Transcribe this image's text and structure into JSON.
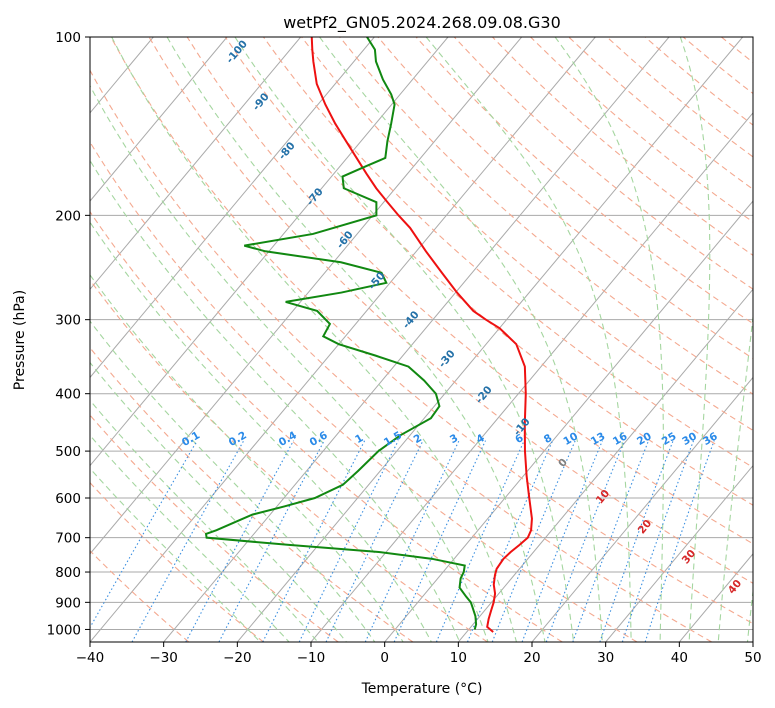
{
  "chart_data": {
    "type": "line",
    "chart_kind": "skew-T log-P diagram",
    "title": "wetPf2_GN05.2024.268.09.08.G30",
    "xlabel": "Temperature (°C)",
    "ylabel": "Pressure (hPa)",
    "xlim": [
      -40,
      50
    ],
    "ylim": [
      1050,
      100
    ],
    "y_scale": "log",
    "x_ticks": [
      -40,
      -30,
      -20,
      -10,
      0,
      10,
      20,
      30,
      40,
      50
    ],
    "y_ticks": [
      100,
      200,
      300,
      400,
      500,
      600,
      700,
      800,
      900,
      1000
    ],
    "grid": true,
    "legend": "none",
    "series": [
      {
        "role": "temperature",
        "color": "#ee1111",
        "points": [
          [
            1010,
            13.6
          ],
          [
            990,
            12.2
          ],
          [
            960,
            11.5
          ],
          [
            930,
            10.9
          ],
          [
            900,
            10.3
          ],
          [
            870,
            9.5
          ],
          [
            840,
            8.3
          ],
          [
            810,
            7.4
          ],
          [
            790,
            6.9
          ],
          [
            760,
            6.7
          ],
          [
            740,
            6.9
          ],
          [
            720,
            7.3
          ],
          [
            700,
            7.6
          ],
          [
            680,
            7.2
          ],
          [
            650,
            6.0
          ],
          [
            600,
            3.3
          ],
          [
            550,
            0.4
          ],
          [
            500,
            -2.6
          ],
          [
            450,
            -5.7
          ],
          [
            400,
            -9.0
          ],
          [
            360,
            -12.2
          ],
          [
            330,
            -15.9
          ],
          [
            310,
            -20.0
          ],
          [
            300,
            -22.8
          ],
          [
            290,
            -25.5
          ],
          [
            270,
            -29.8
          ],
          [
            250,
            -34.1
          ],
          [
            230,
            -38.7
          ],
          [
            210,
            -43.5
          ],
          [
            200,
            -46.5
          ],
          [
            190,
            -49.5
          ],
          [
            180,
            -52.6
          ],
          [
            170,
            -55.6
          ],
          [
            160,
            -58.7
          ],
          [
            150,
            -62.0
          ],
          [
            140,
            -65.5
          ],
          [
            130,
            -69.0
          ],
          [
            120,
            -72.5
          ],
          [
            110,
            -75.5
          ],
          [
            105,
            -77.0
          ],
          [
            100,
            -78.5
          ]
        ]
      },
      {
        "role": "dewpoint",
        "color": "#118811",
        "points": [
          [
            1000,
            10.8
          ],
          [
            980,
            10.4
          ],
          [
            950,
            9.4
          ],
          [
            920,
            8.1
          ],
          [
            900,
            7.2
          ],
          [
            880,
            5.9
          ],
          [
            850,
            4.0
          ],
          [
            820,
            3.1
          ],
          [
            800,
            2.8
          ],
          [
            780,
            2.2
          ],
          [
            760,
            -3.0
          ],
          [
            740,
            -11.0
          ],
          [
            720,
            -24.0
          ],
          [
            700,
            -36.0
          ],
          [
            690,
            -36.5
          ],
          [
            680,
            -35.5
          ],
          [
            660,
            -34.0
          ],
          [
            640,
            -32.4
          ],
          [
            620,
            -29.0
          ],
          [
            600,
            -25.8
          ],
          [
            570,
            -23.5
          ],
          [
            540,
            -23.0
          ],
          [
            500,
            -22.5
          ],
          [
            470,
            -21.3
          ],
          [
            440,
            -19.1
          ],
          [
            420,
            -19.3
          ],
          [
            400,
            -21.2
          ],
          [
            380,
            -24.3
          ],
          [
            360,
            -28.0
          ],
          [
            345,
            -33.7
          ],
          [
            330,
            -40.0
          ],
          [
            320,
            -43.0
          ],
          [
            305,
            -43.5
          ],
          [
            290,
            -46.7
          ],
          [
            280,
            -52.0
          ],
          [
            270,
            -45.5
          ],
          [
            260,
            -40.5
          ],
          [
            250,
            -42.3
          ],
          [
            240,
            -49.0
          ],
          [
            230,
            -60.5
          ],
          [
            225,
            -64.0
          ],
          [
            215,
            -56.0
          ],
          [
            200,
            -49.5
          ],
          [
            190,
            -51.0
          ],
          [
            180,
            -57.0
          ],
          [
            172,
            -58.5
          ],
          [
            165,
            -56.4
          ],
          [
            160,
            -54.8
          ],
          [
            150,
            -56.4
          ],
          [
            140,
            -57.9
          ],
          [
            130,
            -59.6
          ],
          [
            125,
            -61.2
          ],
          [
            118,
            -64.0
          ],
          [
            110,
            -67.0
          ],
          [
            105,
            -68.5
          ],
          [
            100,
            -71.0
          ]
        ]
      }
    ],
    "dry_adiabat_labels": [
      "-100",
      "-90",
      "-80",
      "-70",
      "-60",
      "-50",
      "-40",
      "-30",
      "-20",
      "-10"
    ],
    "mixing_ratio_labels": [
      "0.1",
      "0.2",
      "0.4",
      "0.6",
      "1",
      "1.5",
      "2",
      "3",
      "4",
      "6",
      "8",
      "10",
      "13",
      "16",
      "20",
      "25",
      "30",
      "36"
    ],
    "moist_adiabat_labels": [
      "0",
      "10",
      "20",
      "30",
      "40"
    ],
    "colors": {
      "isotherm_grid": "#aaaaaa",
      "dry_adiabat": "#f4a990",
      "moist_adiabat": "#a5d6a0",
      "mixing_ratio": "#3b8fe0",
      "dry_label": "#2471a8",
      "mixing_label": "#2a8ae8",
      "moist_label_warm": "#d62728",
      "moist_label_zero": "#808080"
    }
  }
}
